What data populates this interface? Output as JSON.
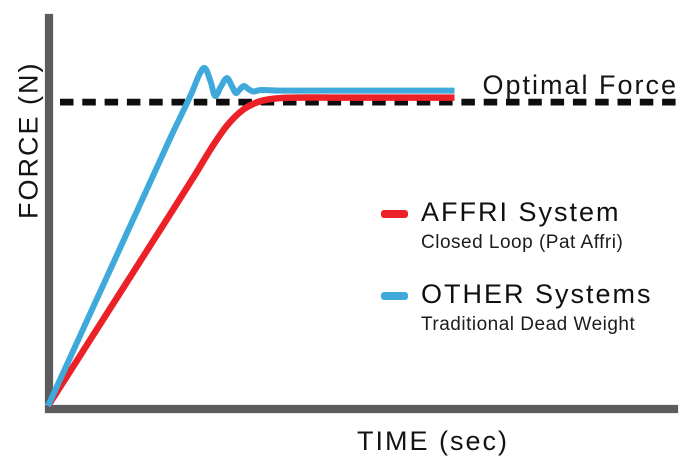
{
  "colors": {
    "background": "#ffffff",
    "axis": "#5B5C5E",
    "dash": "#0d0d0d",
    "text": "#141414",
    "affri_red": "#EC2127",
    "other_blue": "#3FA9DC"
  },
  "chart_data": {
    "type": "line",
    "xlabel": "TIME (sec)",
    "ylabel": "FORCE (N)",
    "grid": false,
    "ticks_visible": false,
    "xlim": [
      0,
      15.5
    ],
    "ylim": [
      0,
      1.29
    ],
    "optimal_force": {
      "value": 1.0,
      "label": "Optimal Force",
      "style": "dashed",
      "color": "#0d0d0d"
    },
    "series": [
      {
        "name": "AFFRI System",
        "subtitle": "Closed Loop (Pat Affri)",
        "color": "#EC2127",
        "points": [
          [
            0,
            0
          ],
          [
            1,
            0.21
          ],
          [
            2,
            0.42
          ],
          [
            3,
            0.63
          ],
          [
            3.6,
            0.757
          ],
          [
            4.0,
            0.845
          ],
          [
            4.4,
            0.922
          ],
          [
            4.8,
            0.975
          ],
          [
            5.2,
            1.002
          ],
          [
            5.6,
            1.012
          ],
          [
            6.1,
            1.015
          ],
          [
            7,
            1.015
          ],
          [
            8.5,
            1.015
          ],
          [
            10,
            1.015
          ]
        ]
      },
      {
        "name": "OTHER Systems",
        "subtitle": "Traditional Dead Weight",
        "color": "#3FA9DC",
        "points": [
          [
            0,
            0
          ],
          [
            1,
            0.293
          ],
          [
            2,
            0.586
          ],
          [
            3,
            0.879
          ],
          [
            3.3,
            0.963
          ],
          [
            3.55,
            1.035
          ],
          [
            3.72,
            1.09
          ],
          [
            3.86,
            1.112
          ],
          [
            4.0,
            1.068
          ],
          [
            4.11,
            1.02
          ],
          [
            4.25,
            1.05
          ],
          [
            4.4,
            1.079
          ],
          [
            4.52,
            1.054
          ],
          [
            4.62,
            1.03
          ],
          [
            4.72,
            1.042
          ],
          [
            4.82,
            1.053
          ],
          [
            4.93,
            1.043
          ],
          [
            5.05,
            1.035
          ],
          [
            5.25,
            1.04
          ],
          [
            5.7,
            1.038
          ],
          [
            7,
            1.038
          ],
          [
            8.5,
            1.038
          ],
          [
            10,
            1.038
          ]
        ]
      }
    ],
    "legend": {
      "position": "center-right",
      "entries": [
        {
          "label": "AFFRI System",
          "sublabel": "Closed Loop (Pat Affri)",
          "color": "#EC2127"
        },
        {
          "label": "OTHER Systems",
          "sublabel": "Traditional Dead Weight",
          "color": "#3FA9DC"
        }
      ]
    }
  }
}
